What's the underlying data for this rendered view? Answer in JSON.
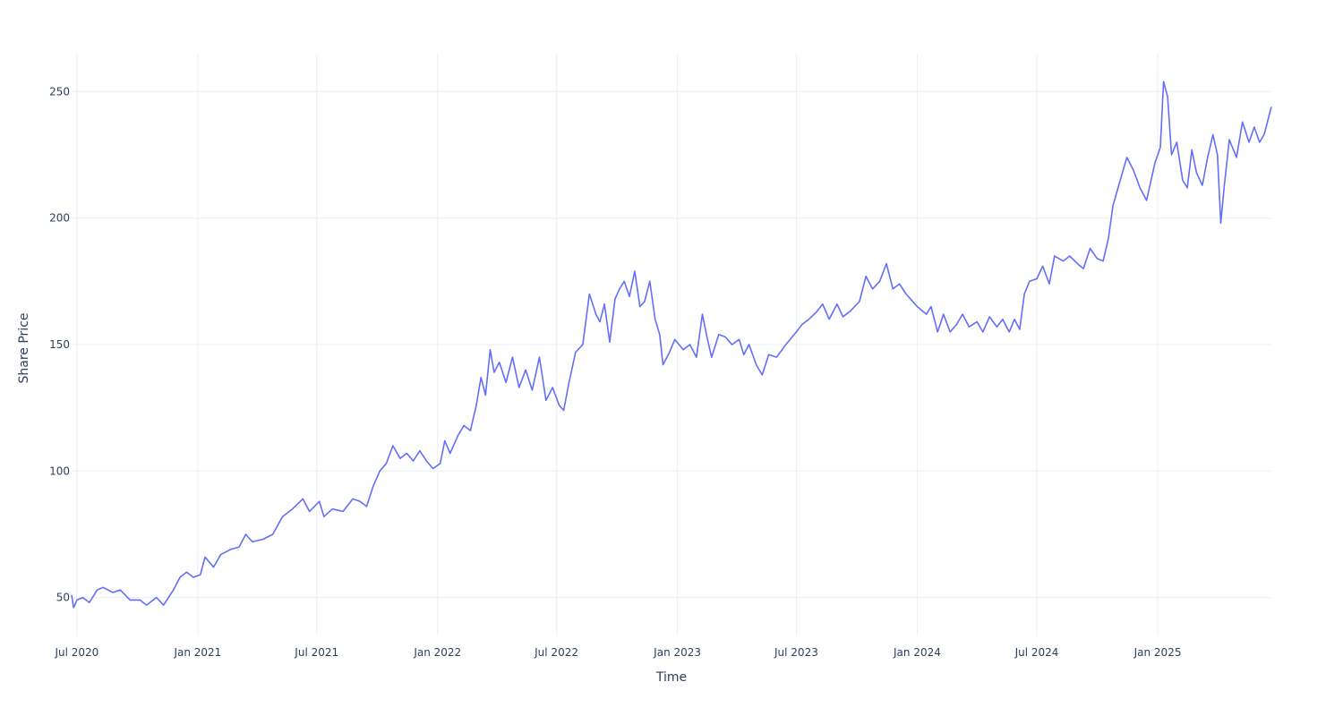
{
  "chart_data": {
    "type": "line",
    "title": "",
    "xlabel": "Time",
    "ylabel": "Share Price",
    "grid": true,
    "x_range": [
      "2020-06-23",
      "2025-06-23"
    ],
    "ylim": [
      35,
      265
    ],
    "x_ticks": [
      {
        "date": "2020-07-01",
        "label": "Jul 2020"
      },
      {
        "date": "2021-01-01",
        "label": "Jan 2021"
      },
      {
        "date": "2021-07-01",
        "label": "Jul 2021"
      },
      {
        "date": "2022-01-01",
        "label": "Jan 2022"
      },
      {
        "date": "2022-07-01",
        "label": "Jul 2022"
      },
      {
        "date": "2023-01-01",
        "label": "Jan 2023"
      },
      {
        "date": "2023-07-01",
        "label": "Jul 2023"
      },
      {
        "date": "2024-01-01",
        "label": "Jan 2024"
      },
      {
        "date": "2024-07-01",
        "label": "Jul 2024"
      },
      {
        "date": "2025-01-01",
        "label": "Jan 2025"
      }
    ],
    "y_ticks": [
      {
        "value": 50,
        "label": "50"
      },
      {
        "value": 100,
        "label": "100"
      },
      {
        "value": 150,
        "label": "150"
      },
      {
        "value": 200,
        "label": "200"
      },
      {
        "value": 250,
        "label": "250"
      }
    ],
    "series": [
      {
        "color": "#636efa",
        "points": [
          [
            "2020-06-23",
            51
          ],
          [
            "2020-06-26",
            46
          ],
          [
            "2020-07-01",
            49
          ],
          [
            "2020-07-10",
            50
          ],
          [
            "2020-07-20",
            48
          ],
          [
            "2020-08-01",
            53
          ],
          [
            "2020-08-10",
            54
          ],
          [
            "2020-08-25",
            52
          ],
          [
            "2020-09-05",
            53
          ],
          [
            "2020-09-20",
            49
          ],
          [
            "2020-10-05",
            49
          ],
          [
            "2020-10-15",
            47
          ],
          [
            "2020-10-30",
            50
          ],
          [
            "2020-11-10",
            47
          ],
          [
            "2020-11-25",
            53
          ],
          [
            "2020-12-05",
            58
          ],
          [
            "2020-12-15",
            60
          ],
          [
            "2020-12-25",
            58
          ],
          [
            "2021-01-05",
            59
          ],
          [
            "2021-01-12",
            66
          ],
          [
            "2021-01-25",
            62
          ],
          [
            "2021-02-05",
            67
          ],
          [
            "2021-02-20",
            69
          ],
          [
            "2021-03-05",
            70
          ],
          [
            "2021-03-15",
            75
          ],
          [
            "2021-03-25",
            72
          ],
          [
            "2021-04-10",
            73
          ],
          [
            "2021-04-25",
            75
          ],
          [
            "2021-05-10",
            82
          ],
          [
            "2021-05-25",
            85
          ],
          [
            "2021-06-10",
            89
          ],
          [
            "2021-06-20",
            84
          ],
          [
            "2021-07-05",
            88
          ],
          [
            "2021-07-12",
            82
          ],
          [
            "2021-07-25",
            85
          ],
          [
            "2021-08-10",
            84
          ],
          [
            "2021-08-25",
            89
          ],
          [
            "2021-09-05",
            88
          ],
          [
            "2021-09-15",
            86
          ],
          [
            "2021-09-25",
            94
          ],
          [
            "2021-10-05",
            100
          ],
          [
            "2021-10-15",
            103
          ],
          [
            "2021-10-25",
            110
          ],
          [
            "2021-11-05",
            105
          ],
          [
            "2021-11-15",
            107
          ],
          [
            "2021-11-25",
            104
          ],
          [
            "2021-12-05",
            108
          ],
          [
            "2021-12-15",
            104
          ],
          [
            "2021-12-25",
            101
          ],
          [
            "2022-01-05",
            103
          ],
          [
            "2022-01-12",
            112
          ],
          [
            "2022-01-20",
            107
          ],
          [
            "2022-02-01",
            114
          ],
          [
            "2022-02-10",
            118
          ],
          [
            "2022-02-20",
            116
          ],
          [
            "2022-03-01",
            126
          ],
          [
            "2022-03-08",
            137
          ],
          [
            "2022-03-15",
            130
          ],
          [
            "2022-03-22",
            148
          ],
          [
            "2022-03-28",
            139
          ],
          [
            "2022-04-05",
            143
          ],
          [
            "2022-04-15",
            135
          ],
          [
            "2022-04-25",
            145
          ],
          [
            "2022-05-05",
            133
          ],
          [
            "2022-05-15",
            140
          ],
          [
            "2022-05-25",
            132
          ],
          [
            "2022-06-05",
            145
          ],
          [
            "2022-06-15",
            128
          ],
          [
            "2022-06-25",
            133
          ],
          [
            "2022-07-05",
            126
          ],
          [
            "2022-07-12",
            124
          ],
          [
            "2022-07-20",
            135
          ],
          [
            "2022-07-30",
            147
          ],
          [
            "2022-08-10",
            150
          ],
          [
            "2022-08-20",
            170
          ],
          [
            "2022-08-30",
            162
          ],
          [
            "2022-09-05",
            159
          ],
          [
            "2022-09-12",
            166
          ],
          [
            "2022-09-20",
            151
          ],
          [
            "2022-09-28",
            168
          ],
          [
            "2022-10-05",
            172
          ],
          [
            "2022-10-12",
            175
          ],
          [
            "2022-10-20",
            169
          ],
          [
            "2022-10-28",
            179
          ],
          [
            "2022-11-05",
            165
          ],
          [
            "2022-11-12",
            167
          ],
          [
            "2022-11-20",
            175
          ],
          [
            "2022-11-28",
            160
          ],
          [
            "2022-12-05",
            154
          ],
          [
            "2022-12-10",
            142
          ],
          [
            "2022-12-20",
            147
          ],
          [
            "2022-12-28",
            152
          ],
          [
            "2023-01-10",
            148
          ],
          [
            "2023-01-20",
            150
          ],
          [
            "2023-01-30",
            145
          ],
          [
            "2023-02-08",
            162
          ],
          [
            "2023-02-15",
            153
          ],
          [
            "2023-02-22",
            145
          ],
          [
            "2023-03-05",
            154
          ],
          [
            "2023-03-15",
            153
          ],
          [
            "2023-03-25",
            150
          ],
          [
            "2023-04-05",
            152
          ],
          [
            "2023-04-12",
            146
          ],
          [
            "2023-04-20",
            150
          ],
          [
            "2023-05-01",
            142
          ],
          [
            "2023-05-10",
            138
          ],
          [
            "2023-05-20",
            146
          ],
          [
            "2023-06-01",
            145
          ],
          [
            "2023-06-15",
            150
          ],
          [
            "2023-07-01",
            155
          ],
          [
            "2023-07-10",
            158
          ],
          [
            "2023-07-20",
            160
          ],
          [
            "2023-08-01",
            163
          ],
          [
            "2023-08-10",
            166
          ],
          [
            "2023-08-20",
            160
          ],
          [
            "2023-09-01",
            166
          ],
          [
            "2023-09-10",
            161
          ],
          [
            "2023-09-20",
            163
          ],
          [
            "2023-10-05",
            167
          ],
          [
            "2023-10-15",
            177
          ],
          [
            "2023-10-25",
            172
          ],
          [
            "2023-11-05",
            175
          ],
          [
            "2023-11-15",
            182
          ],
          [
            "2023-11-25",
            172
          ],
          [
            "2023-12-05",
            174
          ],
          [
            "2023-12-15",
            170
          ],
          [
            "2024-01-01",
            165
          ],
          [
            "2024-01-15",
            162
          ],
          [
            "2024-01-22",
            165
          ],
          [
            "2024-02-01",
            155
          ],
          [
            "2024-02-10",
            162
          ],
          [
            "2024-02-20",
            155
          ],
          [
            "2024-03-01",
            158
          ],
          [
            "2024-03-10",
            162
          ],
          [
            "2024-03-20",
            157
          ],
          [
            "2024-04-01",
            159
          ],
          [
            "2024-04-10",
            155
          ],
          [
            "2024-04-20",
            161
          ],
          [
            "2024-05-01",
            157
          ],
          [
            "2024-05-10",
            160
          ],
          [
            "2024-05-20",
            155
          ],
          [
            "2024-05-28",
            160
          ],
          [
            "2024-06-05",
            156
          ],
          [
            "2024-06-12",
            170
          ],
          [
            "2024-06-20",
            175
          ],
          [
            "2024-07-01",
            176
          ],
          [
            "2024-07-10",
            181
          ],
          [
            "2024-07-20",
            174
          ],
          [
            "2024-07-28",
            185
          ],
          [
            "2024-08-10",
            183
          ],
          [
            "2024-08-20",
            185
          ],
          [
            "2024-09-01",
            182
          ],
          [
            "2024-09-10",
            180
          ],
          [
            "2024-09-20",
            188
          ],
          [
            "2024-10-01",
            184
          ],
          [
            "2024-10-10",
            183
          ],
          [
            "2024-10-18",
            192
          ],
          [
            "2024-10-25",
            205
          ],
          [
            "2024-11-05",
            215
          ],
          [
            "2024-11-15",
            224
          ],
          [
            "2024-11-25",
            219
          ],
          [
            "2024-12-05",
            212
          ],
          [
            "2024-12-15",
            207
          ],
          [
            "2024-12-28",
            222
          ],
          [
            "2025-01-05",
            228
          ],
          [
            "2025-01-10",
            254
          ],
          [
            "2025-01-16",
            248
          ],
          [
            "2025-01-22",
            225
          ],
          [
            "2025-01-30",
            230
          ],
          [
            "2025-02-08",
            215
          ],
          [
            "2025-02-15",
            212
          ],
          [
            "2025-02-22",
            227
          ],
          [
            "2025-03-01",
            218
          ],
          [
            "2025-03-10",
            213
          ],
          [
            "2025-03-18",
            224
          ],
          [
            "2025-03-26",
            233
          ],
          [
            "2025-04-02",
            225
          ],
          [
            "2025-04-07",
            198
          ],
          [
            "2025-04-12",
            212
          ],
          [
            "2025-04-20",
            231
          ],
          [
            "2025-05-01",
            224
          ],
          [
            "2025-05-10",
            238
          ],
          [
            "2025-05-20",
            230
          ],
          [
            "2025-05-28",
            236
          ],
          [
            "2025-06-05",
            230
          ],
          [
            "2025-06-12",
            233
          ],
          [
            "2025-06-23",
            244
          ]
        ]
      }
    ]
  }
}
